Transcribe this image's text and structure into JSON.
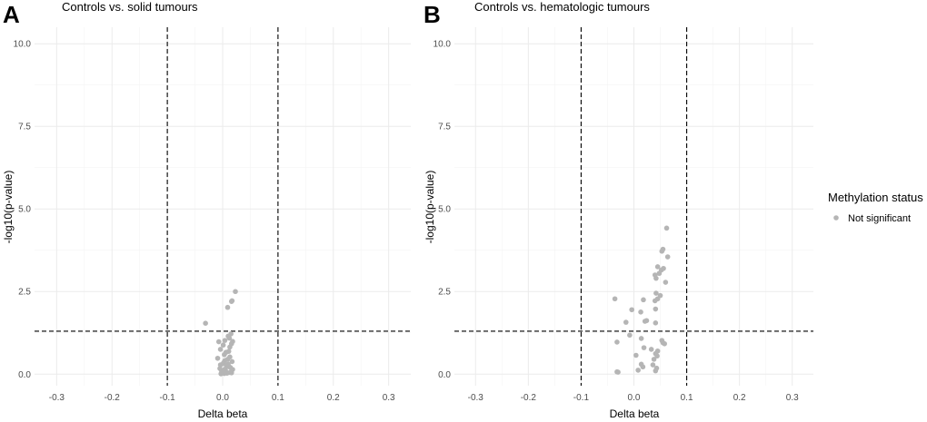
{
  "legend": {
    "title": "Methylation status",
    "entries": [
      {
        "label": "Not significant",
        "color": "#b5b5b5"
      }
    ]
  },
  "chart_data": [
    {
      "type": "scatter",
      "panel": "A",
      "title": "Controls vs. solid tumours",
      "xlabel": "Delta beta",
      "ylabel": "-log10(p-value)",
      "xlim": [
        -0.34,
        0.34
      ],
      "ylim": [
        -0.35,
        10.5
      ],
      "xticks": [
        -0.3,
        -0.2,
        -0.1,
        0.0,
        0.1,
        0.2,
        0.3
      ],
      "xtick_labels": [
        "-0.3",
        "-0.2",
        "-0.1",
        "0.0",
        "0.1",
        "0.2",
        "0.3"
      ],
      "yticks": [
        0,
        2.5,
        5,
        7.5,
        10
      ],
      "ytick_labels": [
        "0.0",
        "2.5",
        "5.0",
        "7.5",
        "10.0"
      ],
      "vlines": [
        -0.1,
        0.1
      ],
      "hline": 1.3,
      "point_color": "#b5b5b5",
      "series": [
        {
          "name": "Not significant",
          "x": [
            0.023,
            0.017,
            0.016,
            0.009,
            -0.031,
            0.015,
            0.01,
            0.012,
            0.004,
            0.018,
            -0.007,
            0.016,
            0.001,
            0.013,
            -0.004,
            0.011,
            0.006,
            0.003,
            0.013,
            -0.009,
            0.009,
            0.004,
            0.017,
            0.002,
            0.001,
            -0.004,
            0.007,
            0.011,
            0.014,
            -0.005,
            0.004,
            0.018,
            0.005,
            -0.002,
            0.001,
            0.006,
            0.013,
            0.008,
            0.003,
            -0.003,
            0.016,
            0.01
          ],
          "y": [
            2.5,
            2.22,
            2.2,
            2.02,
            1.54,
            1.22,
            1.15,
            1.09,
            1.02,
            0.99,
            0.98,
            0.92,
            0.88,
            0.82,
            0.75,
            0.69,
            0.66,
            0.59,
            0.52,
            0.48,
            0.45,
            0.41,
            0.38,
            0.35,
            0.32,
            0.28,
            0.26,
            0.23,
            0.2,
            0.17,
            0.15,
            0.14,
            0.12,
            0.1,
            0.08,
            0.06,
            0.05,
            0.03,
            0.02,
            0.01,
            0.04,
            0.3
          ]
        }
      ]
    },
    {
      "type": "scatter",
      "panel": "B",
      "title": "Controls vs. hematologic tumours",
      "xlabel": "Delta beta",
      "ylabel": "-log10(p-value)",
      "xlim": [
        -0.34,
        0.34
      ],
      "ylim": [
        -0.35,
        10.5
      ],
      "xticks": [
        -0.3,
        -0.2,
        -0.1,
        0.0,
        0.1,
        0.2,
        0.3
      ],
      "xtick_labels": [
        "-0.3",
        "-0.2",
        "-0.1",
        "0.0",
        "0.1",
        "0.2",
        "0.3"
      ],
      "yticks": [
        0,
        2.5,
        5,
        7.5,
        10
      ],
      "ytick_labels": [
        "0.0",
        "2.5",
        "5.0",
        "7.5",
        "10.0"
      ],
      "vlines": [
        -0.1,
        0.1
      ],
      "hline": 1.3,
      "point_color": "#b5b5b5",
      "series": [
        {
          "name": "Not significant",
          "x": [
            0.062,
            0.055,
            0.053,
            0.064,
            0.045,
            0.056,
            0.052,
            0.04,
            0.048,
            0.042,
            0.06,
            0.042,
            0.05,
            0.045,
            0.04,
            0.018,
            -0.036,
            0.041,
            -0.004,
            0.013,
            0.024,
            0.021,
            -0.015,
            0.041,
            -0.008,
            0.014,
            0.053,
            0.055,
            0.058,
            0.033,
            -0.032,
            0.019,
            0.045,
            0.041,
            0.044,
            0.004,
            0.038,
            0.014,
            0.036,
            0.017,
            0.043,
            0.008,
            0.041,
            -0.032,
            -0.03
          ],
          "y": [
            4.42,
            3.78,
            3.72,
            3.55,
            3.25,
            3.2,
            3.15,
            3.0,
            3.05,
            2.9,
            2.78,
            2.45,
            2.38,
            2.28,
            2.22,
            2.25,
            2.28,
            1.97,
            1.95,
            1.88,
            1.62,
            1.6,
            1.57,
            1.55,
            1.18,
            1.08,
            1.02,
            0.95,
            0.92,
            0.75,
            0.97,
            0.8,
            0.7,
            0.62,
            0.55,
            0.57,
            0.45,
            0.3,
            0.28,
            0.22,
            0.18,
            0.12,
            0.1,
            0.07,
            0.06
          ]
        }
      ]
    }
  ]
}
